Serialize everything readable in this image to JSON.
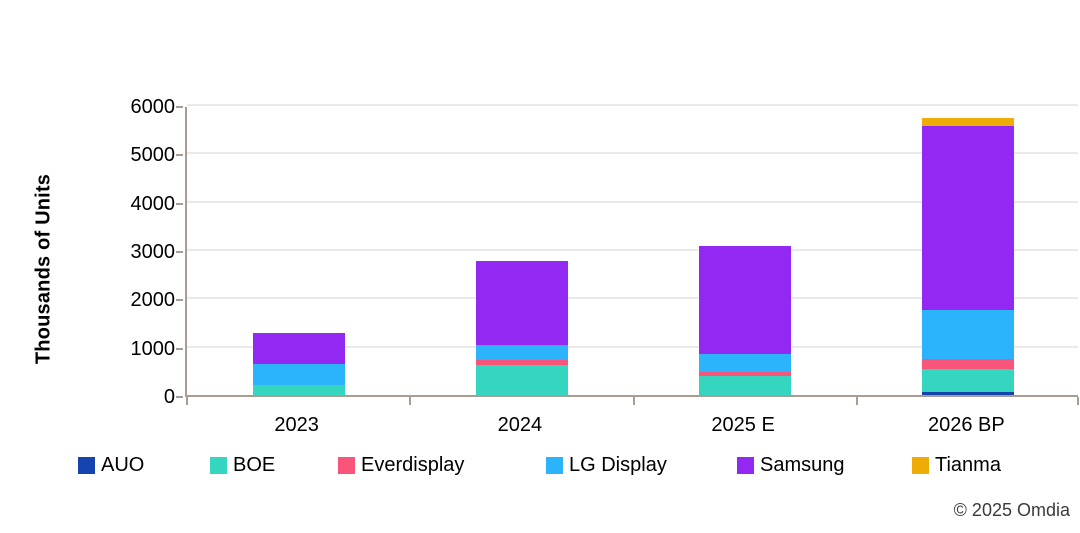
{
  "chart_data": {
    "type": "bar",
    "stacked": true,
    "title": "",
    "xlabel": "",
    "ylabel": "Thousands of Units",
    "ylim": [
      0,
      6000
    ],
    "yticks": [
      0,
      1000,
      2000,
      3000,
      4000,
      5000,
      6000
    ],
    "grid": "horizontal",
    "legend_position": "bottom",
    "categories": [
      "2023",
      "2024",
      "2025 E",
      "2026 BP"
    ],
    "series": [
      {
        "name": "AUO",
        "color": "#1544AF",
        "values": [
          0,
          0,
          0,
          70
        ]
      },
      {
        "name": "BOE",
        "color": "#35D6BF",
        "values": [
          210,
          615,
          400,
          470
        ]
      },
      {
        "name": "Everdisplay",
        "color": "#F9557A",
        "values": [
          0,
          105,
          75,
          200
        ]
      },
      {
        "name": "LG Display",
        "color": "#2BB4FC",
        "values": [
          435,
          320,
          375,
          1020
        ]
      },
      {
        "name": "Samsung",
        "color": "#9328F2",
        "values": [
          635,
          1730,
          2230,
          3810
        ]
      },
      {
        "name": "Tianma",
        "color": "#EFAB06",
        "values": [
          0,
          0,
          0,
          160
        ]
      }
    ],
    "totals": [
      1280,
      2770,
      3080,
      5730
    ]
  },
  "footer": {
    "copyright": "© 2025 Omdia"
  },
  "colors": {
    "background": "#FFFFFF",
    "axis": "#A89C93",
    "gridline": "#ECEAE8",
    "label_text": "#000000",
    "copyright_text": "#3B3B3B"
  }
}
